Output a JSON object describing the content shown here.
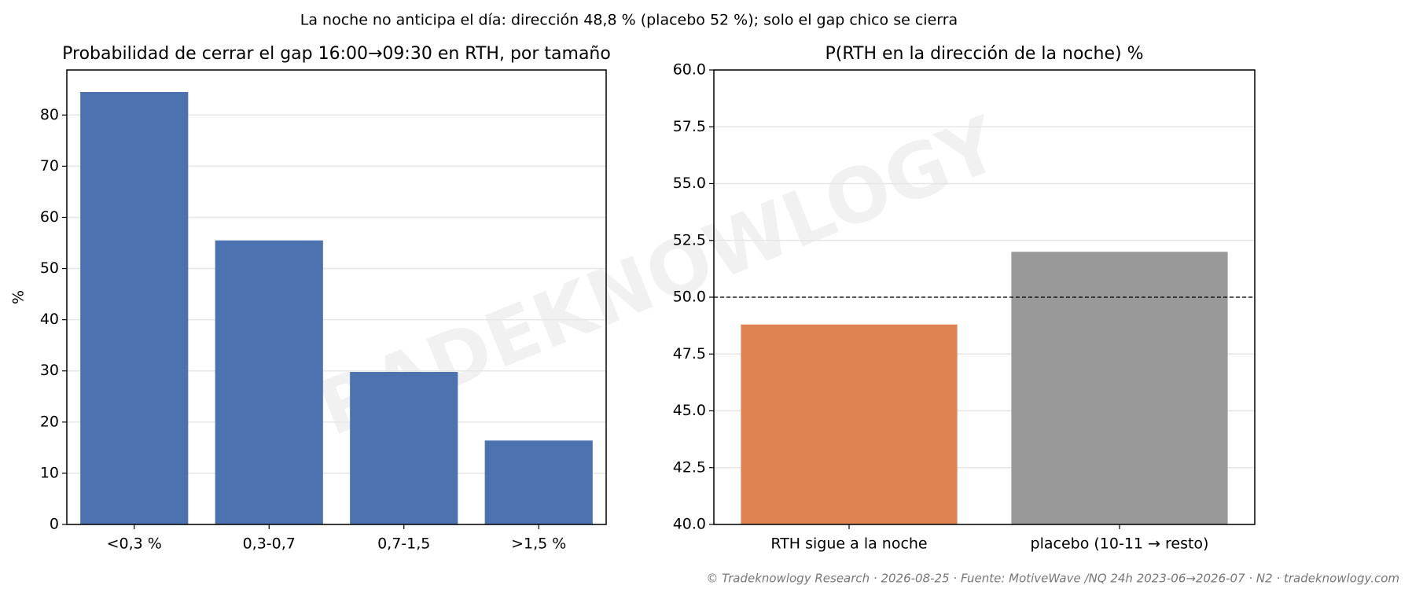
{
  "title": "La noche no anticipa el día: dirección 48,8 % (placebo 52 %); solo el gap chico se cierra",
  "footer": "© Tradeknowlogy Research   ·   2026-08-25   ·   Fuente: MotiveWave /NQ 24h 2023-06→2026-07 · N2   ·   tradeknowlogy.com",
  "watermark": "TRADEKNOWLOGY",
  "chart_data": [
    {
      "type": "bar",
      "title": "Probabilidad de cerrar el gap 16:00→09:30 en RTH, por tamaño",
      "ylabel": "%",
      "categories": [
        "<0,3 %",
        "0,3-0,7",
        "0,7-1,5",
        ">1,5 %"
      ],
      "values": [
        84.5,
        55.5,
        29.8,
        16.4
      ],
      "colors": [
        "#4c72b0",
        "#4c72b0",
        "#4c72b0",
        "#4c72b0"
      ],
      "ylim": [
        0,
        88.8
      ],
      "yticks": [
        0,
        10,
        20,
        30,
        40,
        50,
        60,
        70,
        80
      ],
      "grid": true
    },
    {
      "type": "bar",
      "title": "P(RTH en la dirección de la noche) %",
      "categories": [
        "RTH sigue a la noche",
        "placebo (10-11 → resto)"
      ],
      "values": [
        48.8,
        52
      ],
      "colors": [
        "#dd8452",
        "#999999"
      ],
      "hline": 50,
      "ylim": [
        40,
        60
      ],
      "yticks": [
        {
          "value": 40,
          "label": "40.0"
        },
        {
          "value": 42.5,
          "label": "42.5"
        },
        {
          "value": 45,
          "label": "45.0"
        },
        {
          "value": 47.5,
          "label": "47.5"
        },
        {
          "value": 50,
          "label": "50.0"
        },
        {
          "value": 52.5,
          "label": "52.5"
        },
        {
          "value": 55,
          "label": "55.0"
        },
        {
          "value": 57.5,
          "label": "57.5"
        },
        {
          "value": 60,
          "label": "60.0"
        }
      ],
      "grid": true
    }
  ]
}
